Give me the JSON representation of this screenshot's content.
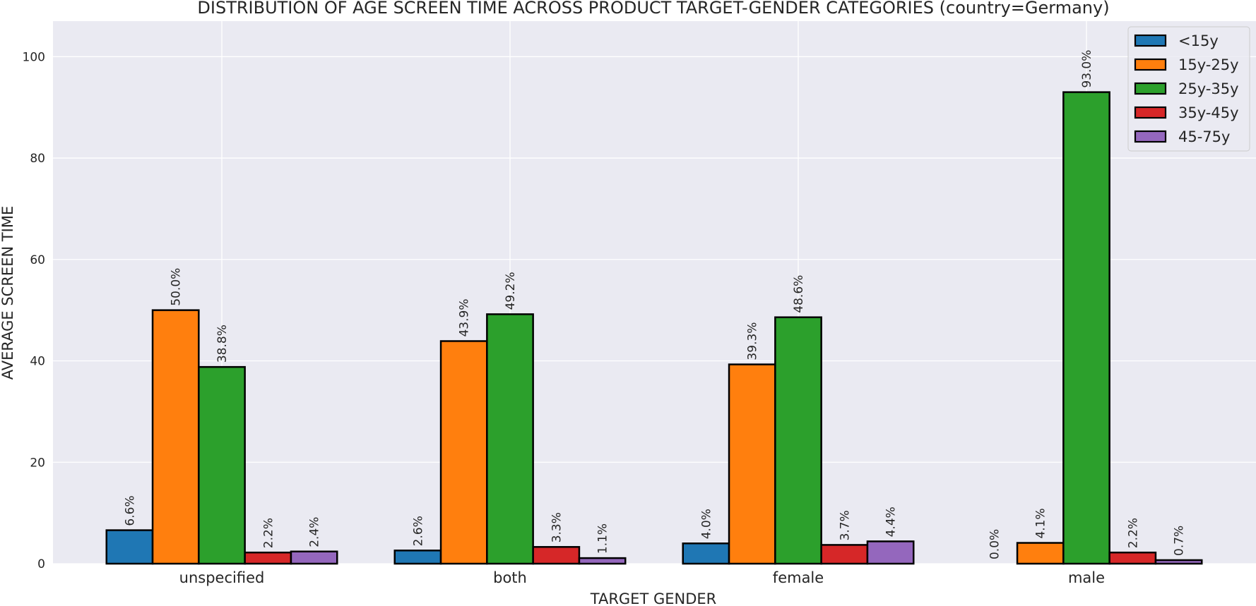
{
  "chart_data": {
    "type": "bar",
    "title": "DISTRIBUTION OF AGE SCREEN TIME ACROSS PRODUCT TARGET-GENDER CATEGORIES (country=Germany)",
    "xlabel": "TARGET GENDER",
    "ylabel": "AVERAGE SCREEN TIME",
    "categories": [
      "unspecified",
      "both",
      "female",
      "male"
    ],
    "ylim": [
      0,
      107
    ],
    "yticks": [
      0,
      20,
      40,
      60,
      80,
      100
    ],
    "grid": true,
    "legend_position": "top-right",
    "series": [
      {
        "name": "<15y",
        "color": "#1f77b4",
        "values": [
          6.6,
          2.6,
          4.0,
          0.0
        ],
        "labels": [
          "6.6%",
          "2.6%",
          "4.0%",
          "0.0%"
        ]
      },
      {
        "name": "15y-25y",
        "color": "#ff7f0e",
        "values": [
          50.0,
          43.9,
          39.3,
          4.1
        ],
        "labels": [
          "50.0%",
          "43.9%",
          "39.3%",
          "4.1%"
        ]
      },
      {
        "name": "25y-35y",
        "color": "#2ca02c",
        "values": [
          38.8,
          49.2,
          48.6,
          93.0
        ],
        "labels": [
          "38.8%",
          "49.2%",
          "48.6%",
          "93.0%"
        ]
      },
      {
        "name": "35y-45y",
        "color": "#d62728",
        "values": [
          2.2,
          3.3,
          3.7,
          2.2
        ],
        "labels": [
          "2.2%",
          "3.3%",
          "3.7%",
          "2.2%"
        ]
      },
      {
        "name": "45-75y",
        "color": "#9467bd",
        "values": [
          2.4,
          1.1,
          4.4,
          0.7
        ],
        "labels": [
          "2.4%",
          "1.1%",
          "4.4%",
          "0.7%"
        ]
      }
    ]
  }
}
